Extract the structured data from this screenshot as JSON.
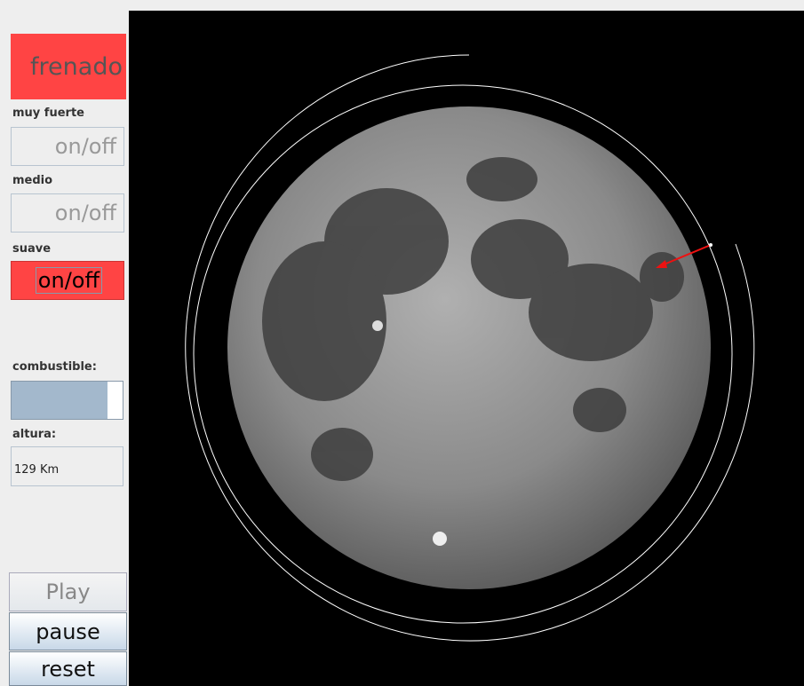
{
  "panel": {
    "brake_button": "frenado",
    "strong_label": "muy fuerte",
    "strong_toggle": "on/off",
    "medium_label": "medio",
    "medium_toggle": "on/off",
    "soft_label": "suave",
    "soft_toggle": "on/off",
    "fuel_label": "combustible:",
    "fuel_percent": 86,
    "altitude_label": "altura:",
    "altitude_value": "129 Km"
  },
  "controls": {
    "play": "Play",
    "pause": "pause",
    "reset": "reset"
  }
}
